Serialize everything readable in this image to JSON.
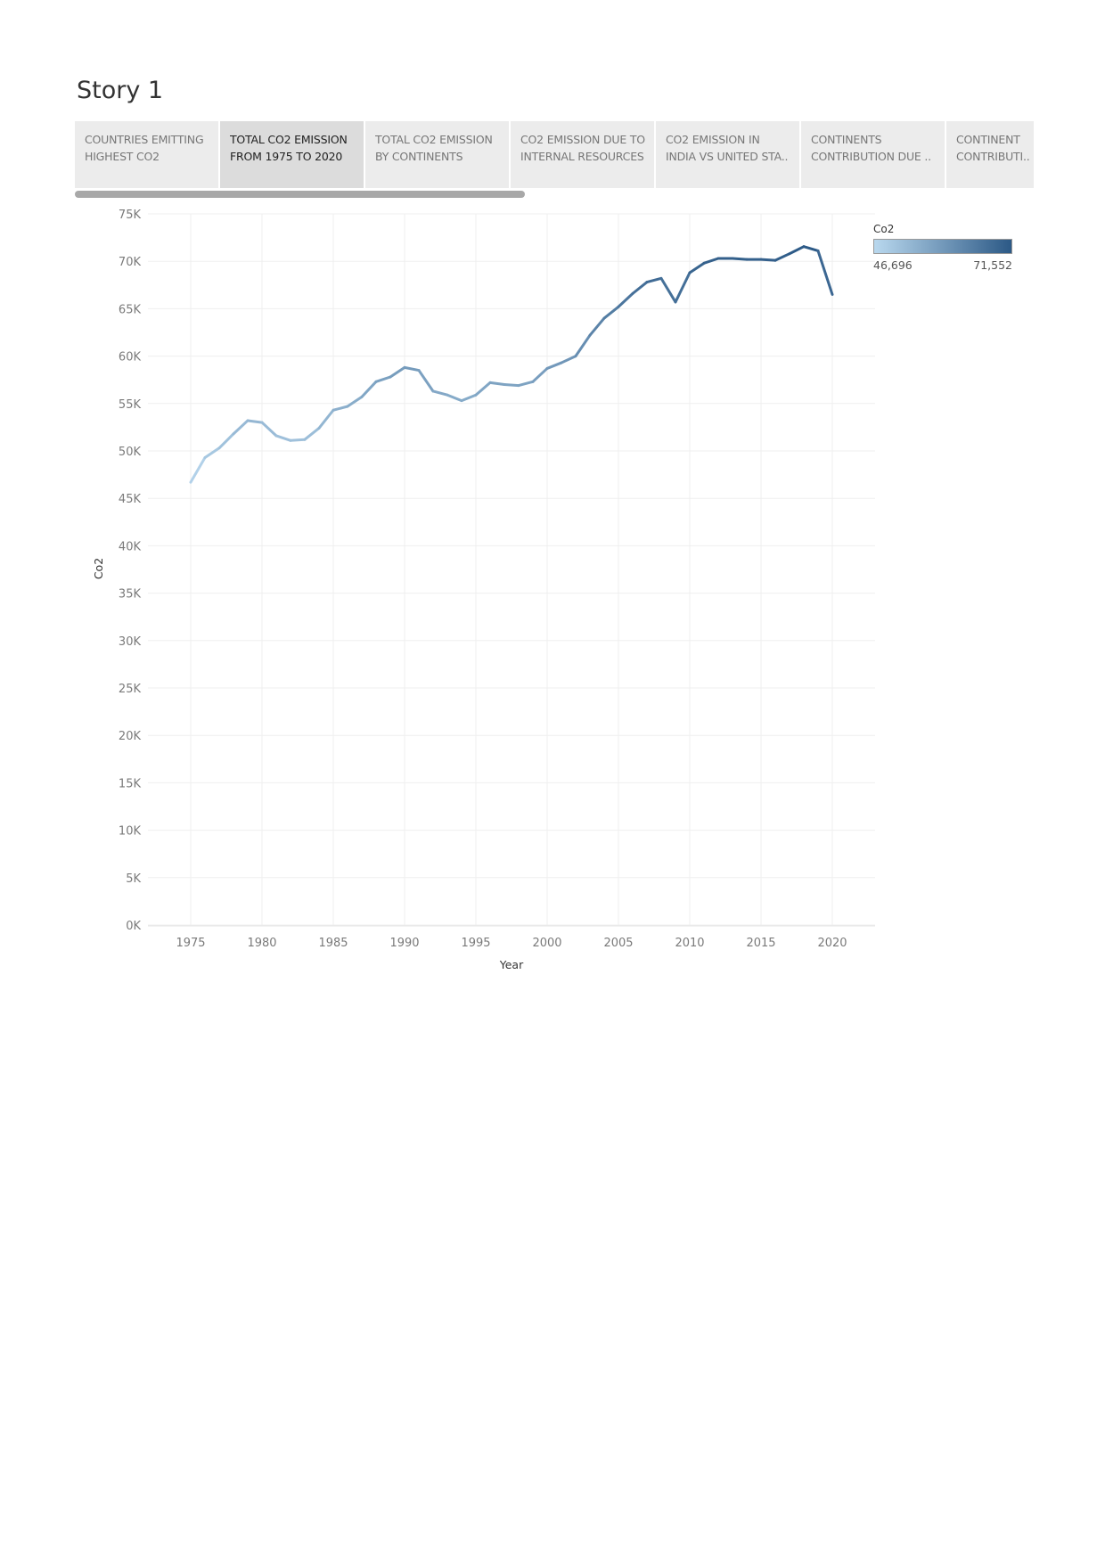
{
  "story": {
    "title": "Story 1"
  },
  "tabs": [
    {
      "line1": "COUNTRIES EMITTING",
      "line2": "HIGHEST CO2"
    },
    {
      "line1": "TOTAL CO2 EMISSION",
      "line2": "FROM 1975 TO 2020"
    },
    {
      "line1": "TOTAL CO2 EMISSION",
      "line2": "BY CONTINENTS"
    },
    {
      "line1": "CO2 EMISSION DUE TO",
      "line2": "INTERNAL RESOURCES"
    },
    {
      "line1": "CO2 EMISSION IN",
      "line2": "INDIA VS UNITED STA.."
    },
    {
      "line1": "CONTINENTS",
      "line2": "CONTRIBUTION DUE .."
    },
    {
      "line1": "CONTINENT",
      "line2": "CONTRIBUTI.."
    }
  ],
  "active_tab": 1,
  "legend": {
    "title": "Co2",
    "min_label": "46,696",
    "max_label": "71,552",
    "color_low": "#b9d8ee",
    "color_high": "#2c5986"
  },
  "chart_data": {
    "type": "line",
    "xlabel": "Year",
    "ylabel": "Co2",
    "xlim": [
      1972,
      2023
    ],
    "ylim": [
      0,
      75000
    ],
    "x_ticks": [
      1975,
      1980,
      1985,
      1990,
      1995,
      2000,
      2005,
      2010,
      2015,
      2020
    ],
    "y_ticks": [
      0,
      5000,
      10000,
      15000,
      20000,
      25000,
      30000,
      35000,
      40000,
      45000,
      50000,
      55000,
      60000,
      65000,
      70000,
      75000
    ],
    "y_tick_labels": [
      "0K",
      "5K",
      "10K",
      "15K",
      "20K",
      "25K",
      "30K",
      "35K",
      "40K",
      "45K",
      "50K",
      "55K",
      "60K",
      "65K",
      "70K",
      "75K"
    ],
    "grid": true,
    "color_encoding": "Co2",
    "x": [
      1975,
      1976,
      1977,
      1978,
      1979,
      1980,
      1981,
      1982,
      1983,
      1984,
      1985,
      1986,
      1987,
      1988,
      1989,
      1990,
      1991,
      1992,
      1993,
      1994,
      1995,
      1996,
      1997,
      1998,
      1999,
      2000,
      2001,
      2002,
      2003,
      2004,
      2005,
      2006,
      2007,
      2008,
      2009,
      2010,
      2011,
      2012,
      2013,
      2014,
      2015,
      2016,
      2017,
      2018,
      2019,
      2020
    ],
    "values": [
      46696,
      49300,
      50300,
      51800,
      53200,
      53000,
      51600,
      51100,
      51200,
      52400,
      54300,
      54700,
      55700,
      57300,
      57800,
      58800,
      58500,
      56300,
      55900,
      55300,
      55900,
      57200,
      57000,
      56900,
      57300,
      58700,
      59300,
      60000,
      62200,
      64000,
      65200,
      66600,
      67800,
      68200,
      65700,
      68800,
      69800,
      70300,
      70300,
      70200,
      70200,
      70100,
      70800,
      71552,
      71100,
      66500
    ]
  }
}
